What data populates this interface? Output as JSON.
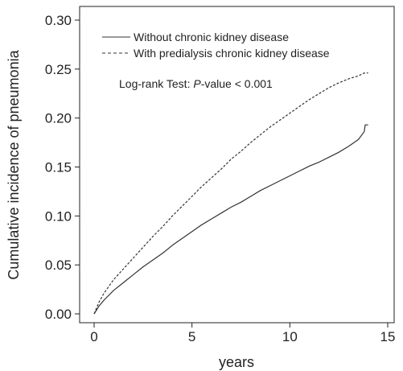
{
  "chart_data": {
    "type": "line",
    "title": "",
    "xlabel": "years",
    "ylabel": "Cumulative incidence of pneumonia",
    "xlim": [
      0,
      15
    ],
    "ylim": [
      0,
      0.3
    ],
    "x_ticks": [
      0,
      5,
      10,
      15
    ],
    "x_tick_labels": [
      "0",
      "5",
      "10",
      "15"
    ],
    "y_ticks": [
      0,
      0.05,
      0.1,
      0.15,
      0.2,
      0.25,
      0.3
    ],
    "y_tick_labels": [
      "0.00",
      "0.05",
      "0.10",
      "0.15",
      "0.20",
      "0.25",
      "0.30"
    ],
    "grid": false,
    "legend_position": "top-left",
    "annotation": {
      "prefix": "Log-rank Test: ",
      "italic": "P",
      "suffix": "-value < 0.001"
    },
    "series": [
      {
        "name": "Without chronic kidney disease",
        "style": "solid",
        "color": "#333333",
        "x": [
          0,
          0.25,
          0.5,
          1,
          1.5,
          2,
          2.5,
          3,
          3.5,
          4,
          4.5,
          5,
          5.5,
          6,
          6.5,
          7,
          7.5,
          8,
          8.5,
          9,
          9.5,
          10,
          10.5,
          11,
          11.5,
          12,
          12.5,
          13,
          13.5,
          13.8,
          13.85,
          14
        ],
        "y": [
          0,
          0.008,
          0.014,
          0.024,
          0.032,
          0.04,
          0.048,
          0.055,
          0.062,
          0.07,
          0.077,
          0.084,
          0.091,
          0.097,
          0.103,
          0.109,
          0.114,
          0.12,
          0.126,
          0.131,
          0.136,
          0.141,
          0.146,
          0.151,
          0.155,
          0.16,
          0.165,
          0.171,
          0.178,
          0.186,
          0.193,
          0.193
        ]
      },
      {
        "name": "With predialysis chronic kidney disease",
        "style": "dashed",
        "color": "#333333",
        "x": [
          0,
          0.25,
          0.5,
          1,
          1.5,
          2,
          2.5,
          3,
          3.5,
          4,
          4.5,
          5,
          5.5,
          6,
          6.5,
          7,
          7.5,
          8,
          8.5,
          9,
          9.5,
          10,
          10.5,
          11,
          11.5,
          12,
          12.5,
          13,
          13.5,
          13.8,
          14
        ],
        "y": [
          0,
          0.012,
          0.021,
          0.035,
          0.046,
          0.057,
          0.068,
          0.079,
          0.089,
          0.1,
          0.11,
          0.12,
          0.13,
          0.139,
          0.148,
          0.158,
          0.166,
          0.175,
          0.183,
          0.191,
          0.198,
          0.205,
          0.212,
          0.219,
          0.225,
          0.231,
          0.236,
          0.24,
          0.243,
          0.246,
          0.246
        ]
      }
    ]
  }
}
